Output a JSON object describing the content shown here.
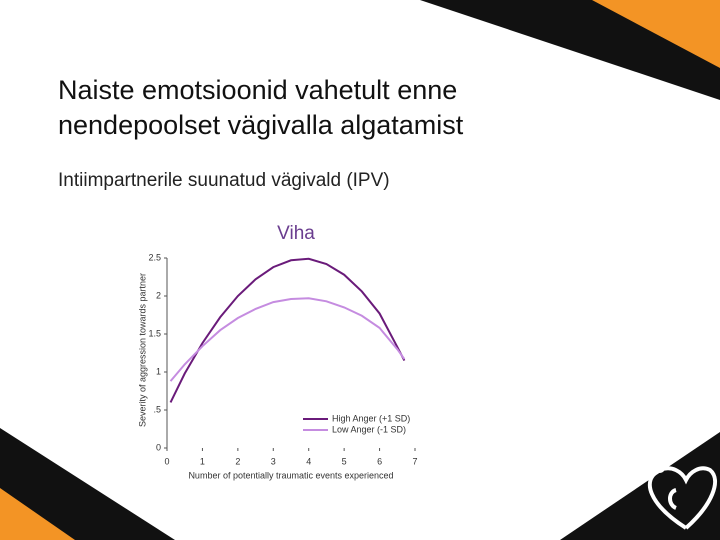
{
  "slide": {
    "title_lines": [
      "Naiste emotsioonid vahetult enne",
      "nendepoolset vägivalla algatamist"
    ],
    "subtitle": "Intiimpartnerile suunatud vägivald (IPV)"
  },
  "chart_data": {
    "type": "line",
    "title": "Viha",
    "x_label": "Number of potentially traumatic events experienced",
    "y_label": "Severity of aggression towards partner",
    "x": [
      0.1,
      0.5,
      1,
      1.5,
      2,
      2.5,
      3,
      3.5,
      4,
      4.5,
      5,
      5.5,
      6,
      6.5,
      6.7
    ],
    "series": [
      {
        "name": "High Anger (+1 SD)",
        "color": "#6a1b7a",
        "values": [
          0.6,
          0.98,
          1.38,
          1.72,
          2.0,
          2.22,
          2.38,
          2.47,
          2.49,
          2.42,
          2.28,
          2.06,
          1.77,
          1.33,
          1.15
        ]
      },
      {
        "name": "Low Anger (-1 SD)",
        "color": "#c58ce0",
        "values": [
          0.88,
          1.1,
          1.34,
          1.55,
          1.71,
          1.83,
          1.92,
          1.96,
          1.97,
          1.93,
          1.85,
          1.74,
          1.58,
          1.3,
          1.17
        ]
      }
    ],
    "xlim": [
      0,
      7
    ],
    "xticks": [
      0,
      1,
      2,
      3,
      4,
      5,
      6,
      7
    ],
    "ylim": [
      0,
      2.5
    ],
    "yticks": [
      0,
      {
        "value": 0.5,
        "label": ".5"
      },
      1,
      1.5,
      2,
      2.5
    ],
    "grid": false,
    "legend": "lower right"
  }
}
